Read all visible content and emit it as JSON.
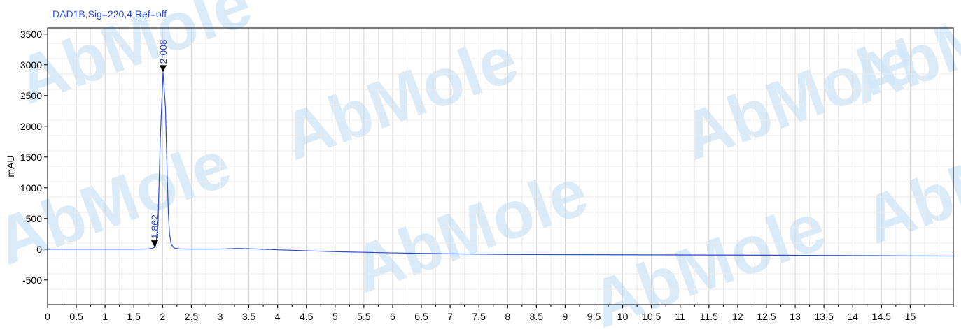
{
  "watermark": {
    "text": "AbMole",
    "color": "#cfe6f7",
    "accent_color": "#fbe7b3"
  },
  "chart_data": {
    "type": "line",
    "title": "DAD1B,Sig=220,4  Ref=off",
    "xlabel": "",
    "ylabel": "mAU",
    "xlim": [
      0,
      15.75
    ],
    "ylim": [
      -900,
      3600
    ],
    "x_ticks": [
      0,
      0.5,
      1,
      1.5,
      2,
      2.5,
      3,
      3.5,
      4,
      4.5,
      5,
      5.5,
      6,
      6.5,
      7,
      7.5,
      8,
      8.5,
      9,
      9.5,
      10,
      10.5,
      11,
      11.5,
      12,
      12.5,
      13,
      13.5,
      14,
      14.5,
      15
    ],
    "y_ticks": [
      -500,
      0,
      500,
      1000,
      1500,
      2000,
      2500,
      3000,
      3500
    ],
    "grid": true,
    "line_color": "#2a4bd7",
    "series": [
      {
        "x": [
          0,
          0.5,
          1.0,
          1.5,
          1.75,
          1.82,
          1.862,
          1.88,
          1.92,
          1.96,
          2.008,
          2.05,
          2.08,
          2.1,
          2.12,
          2.15,
          2.2,
          2.3,
          2.5,
          3.0,
          3.3,
          3.6,
          4.0,
          5.0,
          6.0,
          7.0,
          8.0,
          9.0,
          10.0,
          11.0,
          12.0,
          13.0,
          14.0,
          15.0,
          15.75
        ],
        "y": [
          0,
          0,
          0,
          0,
          5,
          15,
          30,
          60,
          400,
          1800,
          2880,
          2300,
          1200,
          600,
          250,
          80,
          20,
          5,
          2,
          3,
          12,
          5,
          -10,
          -40,
          -60,
          -75,
          -85,
          -88,
          -90,
          -93,
          -96,
          -99,
          -103,
          -108,
          -110
        ]
      }
    ],
    "peaks": [
      {
        "x": 1.862,
        "y": 30,
        "label": "1.862"
      },
      {
        "x": 2.008,
        "y": 2880,
        "label": "2.008"
      }
    ]
  }
}
